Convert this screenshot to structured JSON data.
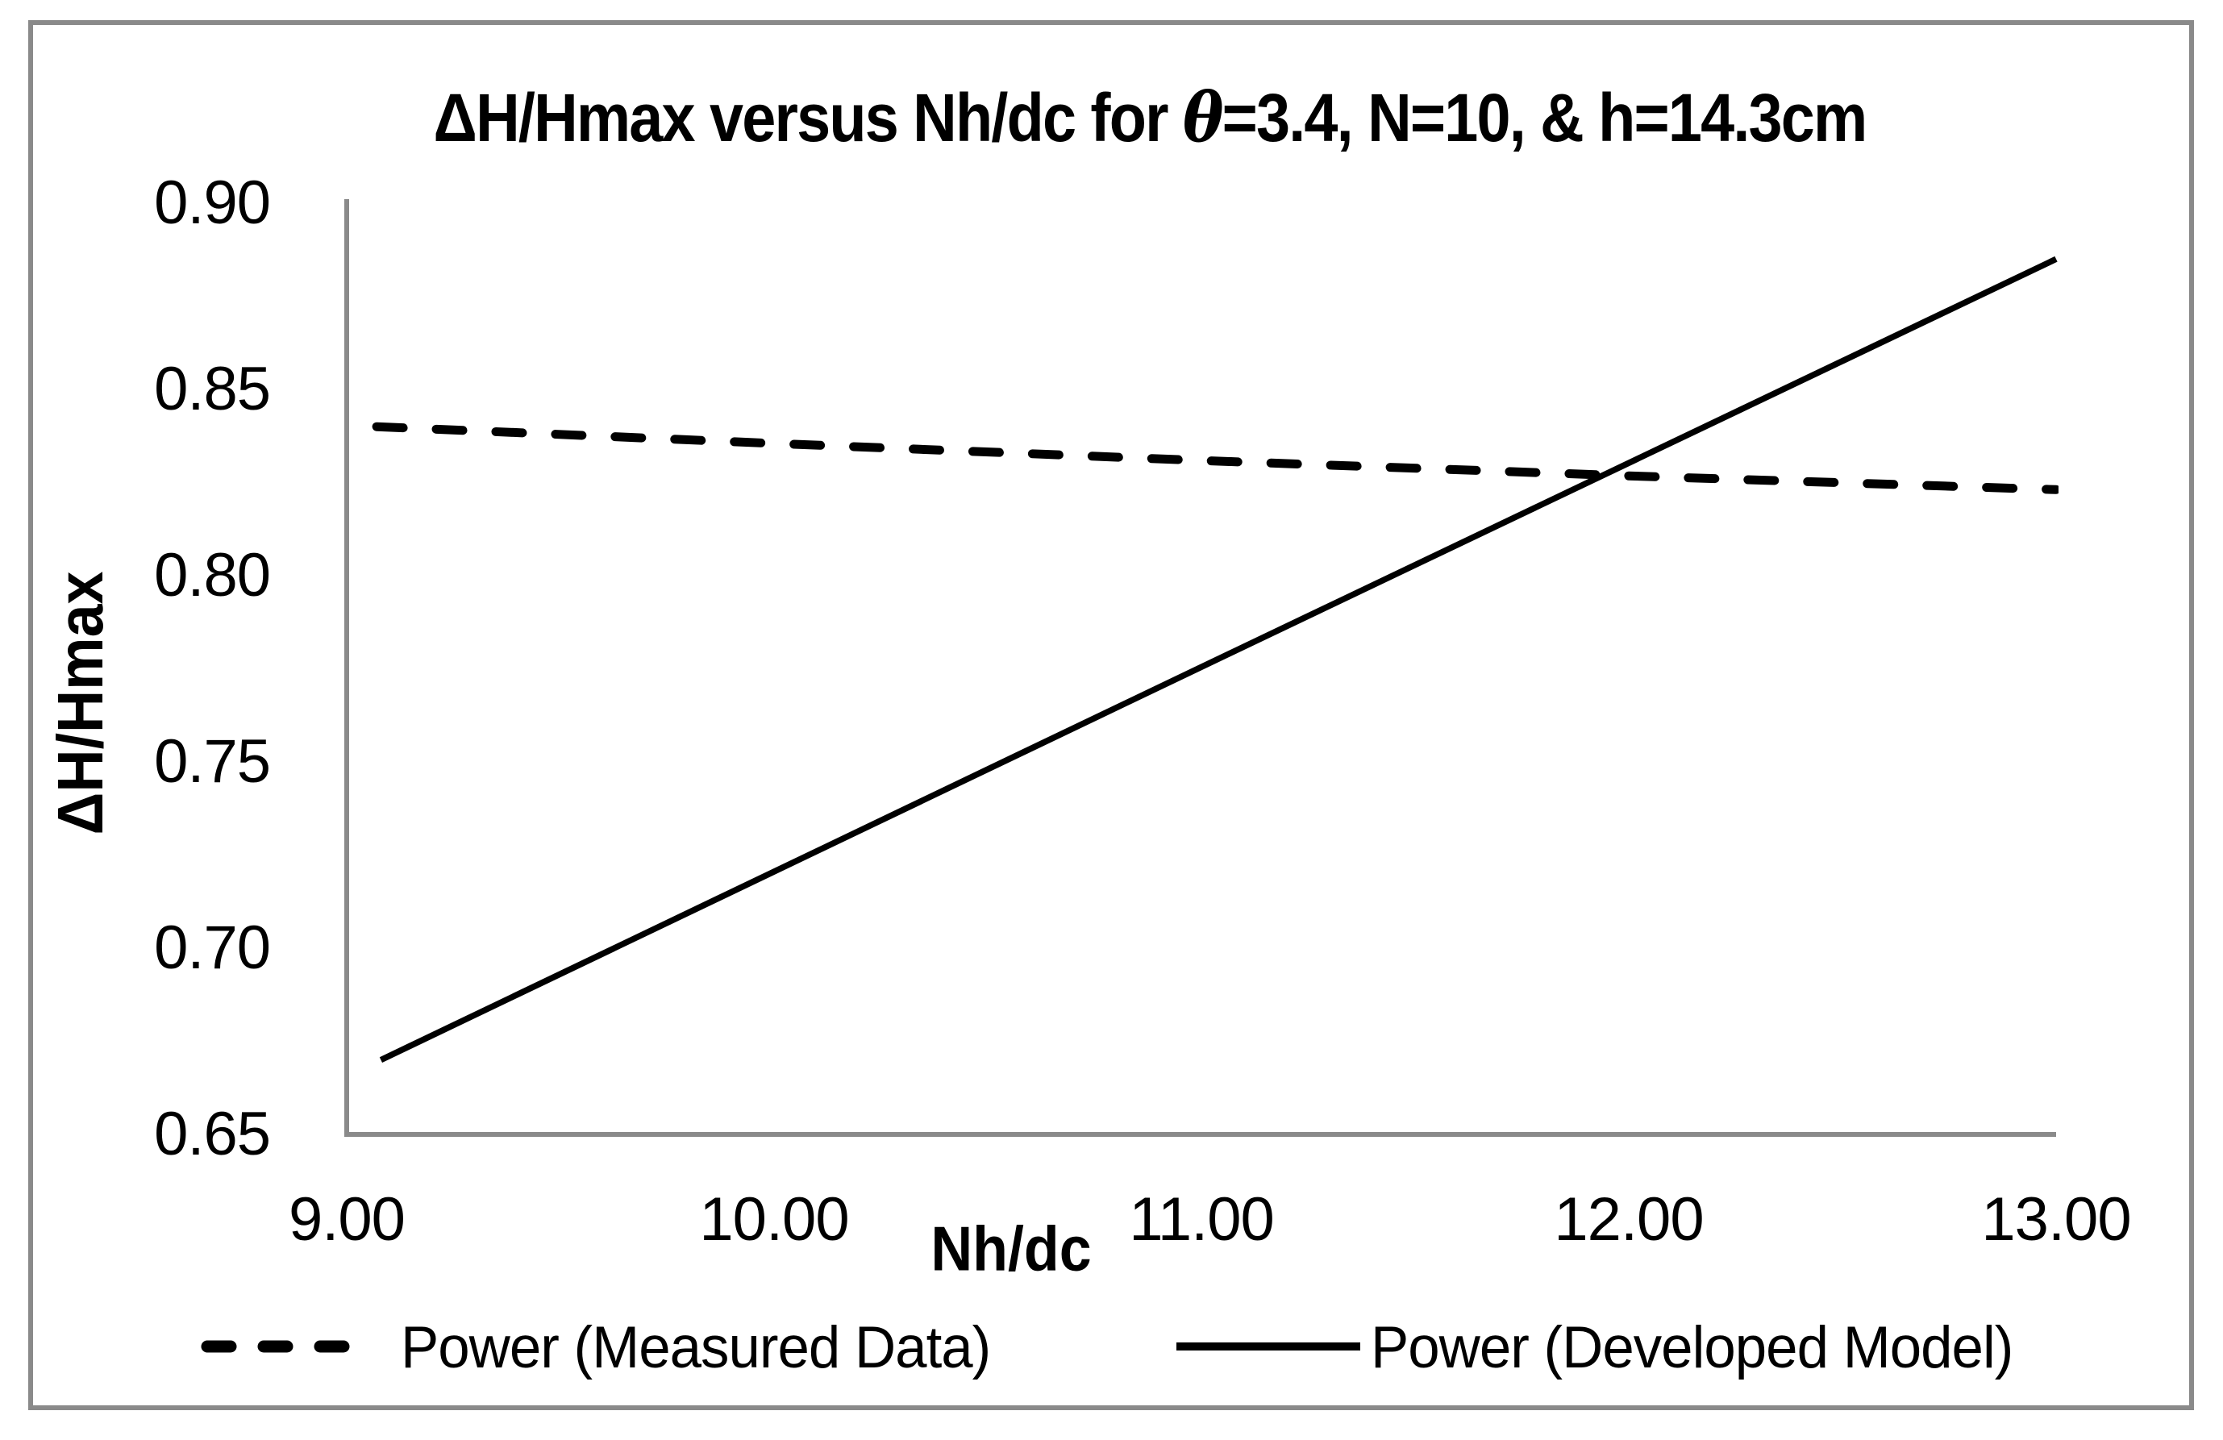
{
  "title": {
    "part1": "ΔH/Hmax versus Nh/dc for ",
    "theta": "θ",
    "part2": "=3.4, N=10, & h=14.3cm"
  },
  "chart_data": {
    "type": "line",
    "title": "ΔH/Hmax versus Nh/dc for θ=3.4, N=10, & h=14.3cm",
    "xlabel": "Nh/dc",
    "ylabel": "ΔH/Hmax",
    "xlim": [
      9.0,
      13.0
    ],
    "ylim": [
      0.65,
      0.9
    ],
    "xticks": [
      "9.00",
      "10.00",
      "11.00",
      "12.00",
      "13.00"
    ],
    "yticks": [
      "0.90",
      "0.85",
      "0.80",
      "0.75",
      "0.70",
      "0.65"
    ],
    "grid": false,
    "legend_position": "bottom",
    "series": [
      {
        "name": "Power (Measured Data)",
        "style": "dashed",
        "fit": "power",
        "points": [
          [
            9.07,
            0.84
          ],
          [
            10.0,
            0.8355
          ],
          [
            11.0,
            0.8309
          ],
          [
            12.0,
            0.8268
          ],
          [
            13.0,
            0.8231
          ]
        ]
      },
      {
        "name": "Power (Developed Model)",
        "style": "solid",
        "fit": "power",
        "points": [
          [
            9.08,
            0.67
          ],
          [
            11.0,
            0.7755
          ],
          [
            13.0,
            0.885
          ]
        ]
      }
    ]
  },
  "colors": {
    "series_line": "#000000",
    "axis_line": "#8a8a8a",
    "frame_border": "#8a8a8a",
    "background": "#ffffff",
    "text": "#000000"
  }
}
